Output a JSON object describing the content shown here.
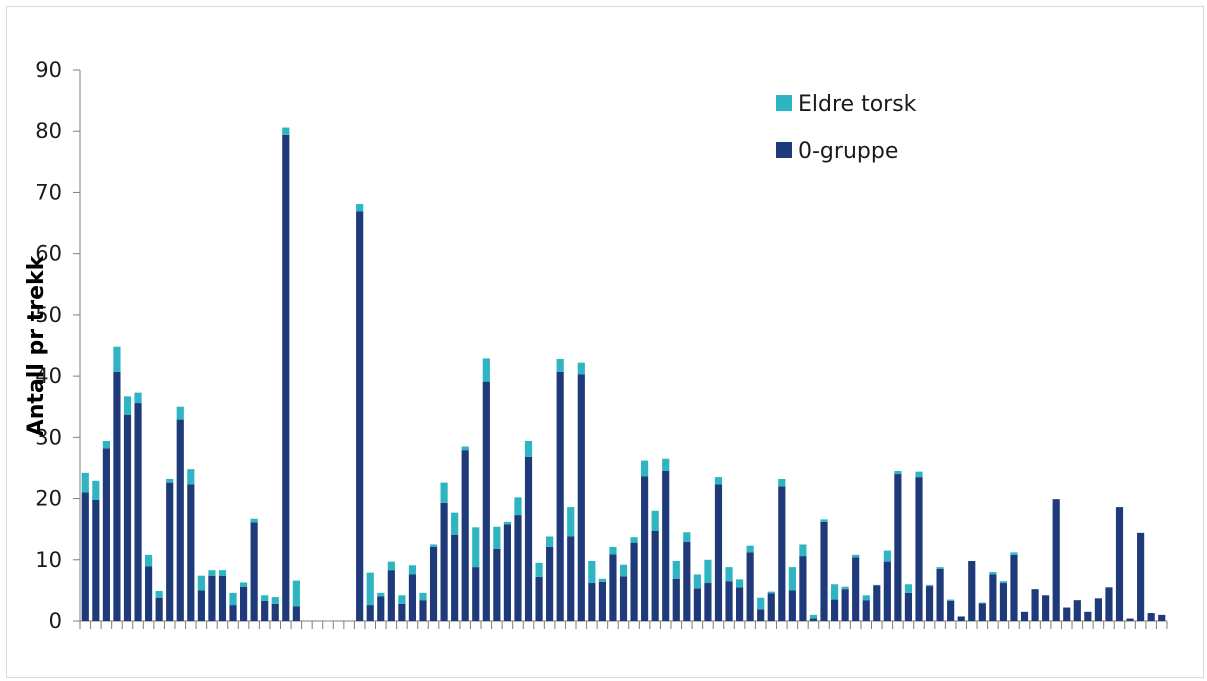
{
  "chart_data": {
    "type": "bar",
    "stacked": true,
    "ylabel": "Antall pr trekk",
    "ylim": [
      0,
      90
    ],
    "yticks": [
      0,
      10,
      20,
      30,
      40,
      50,
      60,
      70,
      80,
      90
    ],
    "legend_position": "top-right",
    "series": [
      {
        "name": "0-gruppe",
        "color": "#1f3a7a",
        "values": [
          21,
          19.8,
          28.2,
          40.7,
          33.7,
          35.6,
          8.9,
          3.8,
          22.6,
          32.9,
          22.3,
          5,
          7.4,
          7.4,
          2.6,
          5.6,
          16.1,
          3.3,
          2.8,
          79.4,
          2.4,
          0,
          0,
          0,
          0,
          0,
          66.9,
          2.6,
          4,
          8.3,
          2.8,
          7.6,
          3.4,
          12.1,
          19.3,
          14.1,
          27.9,
          8.8,
          39.1,
          11.8,
          15.8,
          17.3,
          26.8,
          7.2,
          12.1,
          40.7,
          13.8,
          40.3,
          6.2,
          6.4,
          10.9,
          7.3,
          12.8,
          23.6,
          14.7,
          24.5,
          6.9,
          12.9,
          5.3,
          6.2,
          22.3,
          6.5,
          5.5,
          11.2,
          1.9,
          4.5,
          22,
          5,
          10.6,
          0.4,
          16.2,
          3.5,
          5.2,
          10.4,
          3.4,
          5.8,
          9.7,
          24,
          4.6,
          23.5,
          5.7,
          8.5,
          3.3,
          0.7,
          9.8,
          2.9,
          7.6,
          6.2,
          10.8,
          1.5,
          5.2,
          4.2,
          19.9,
          2.2,
          3.4,
          1.5,
          3.7,
          5.5,
          18.6,
          0.4,
          14.4,
          1.3,
          1
        ]
      },
      {
        "name": "Eldre torsk",
        "color": "#2fb4c2",
        "values": [
          3.2,
          3.1,
          1.2,
          4.1,
          3,
          1.7,
          1.9,
          1.1,
          0.6,
          2.1,
          2.5,
          2.4,
          0.9,
          0.9,
          2,
          0.7,
          0.6,
          0.9,
          1.1,
          1.2,
          4.2,
          0,
          0,
          0,
          0,
          0,
          1.2,
          5.3,
          0.6,
          1.4,
          1.4,
          1.5,
          1.2,
          0.4,
          3.3,
          3.6,
          0.6,
          6.5,
          3.8,
          3.6,
          0.4,
          2.9,
          2.6,
          2.3,
          1.7,
          2.1,
          4.8,
          1.9,
          3.6,
          0.5,
          1.2,
          1.9,
          0.9,
          2.6,
          3.3,
          2,
          2.9,
          1.6,
          2.3,
          3.8,
          1.2,
          2.3,
          1.3,
          1.1,
          1.9,
          0.3,
          1.2,
          3.8,
          1.9,
          0.6,
          0.4,
          2.5,
          0.4,
          0.4,
          0.8,
          0.1,
          1.8,
          0.5,
          1.4,
          0.9,
          0.2,
          0.3,
          0.2,
          0.1,
          0,
          0.1,
          0.4,
          0.3,
          0.4,
          0,
          0,
          0,
          0,
          0,
          0,
          0,
          0,
          0,
          0,
          0,
          0,
          0,
          0
        ]
      }
    ]
  }
}
